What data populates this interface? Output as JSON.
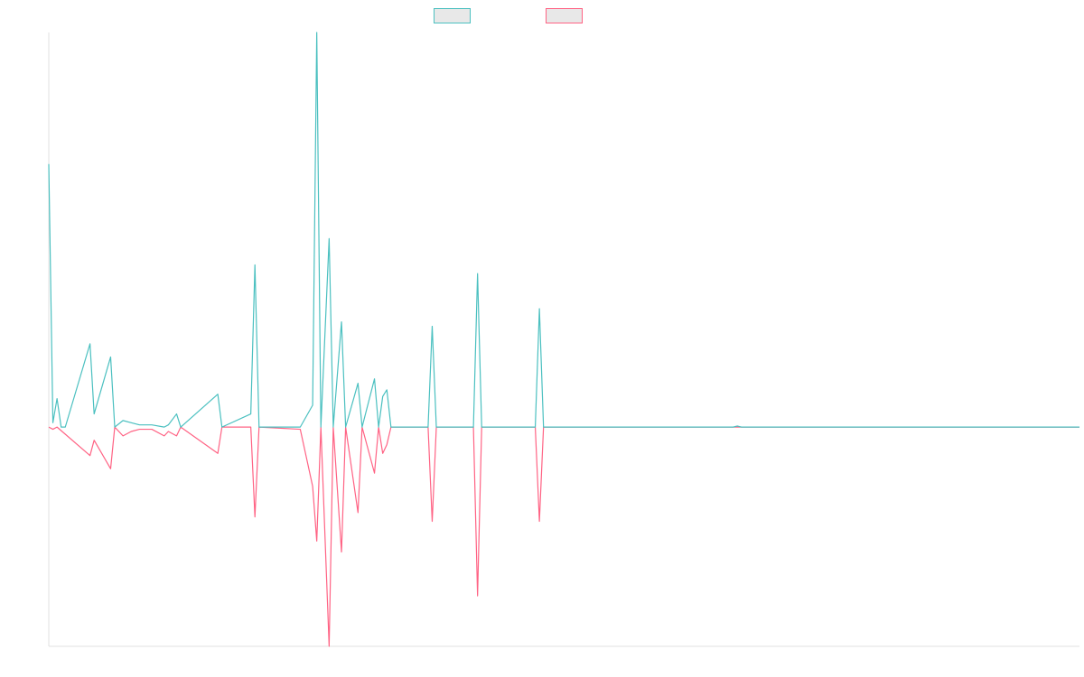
{
  "chart_data": {
    "type": "line",
    "title": "",
    "xlabel": "",
    "ylabel": "",
    "legend_position": "top-center",
    "grid": false,
    "x_count": 250,
    "ylim": [
      -1.0,
      1.8
    ],
    "colors": {
      "series_a": "#4bc0c0",
      "series_b": "#ff6384",
      "legend_fill": "#e8e8e8",
      "axis": "#e0e0e0"
    },
    "series": [
      {
        "key": "series_a",
        "name": "",
        "points": [
          [
            0,
            1.2
          ],
          [
            1,
            0.02
          ],
          [
            2,
            0.13
          ],
          [
            3,
            0.0
          ],
          [
            4,
            0.0
          ],
          [
            10,
            0.38
          ],
          [
            11,
            0.06
          ],
          [
            15,
            0.32
          ],
          [
            16,
            0.0
          ],
          [
            18,
            0.03
          ],
          [
            20,
            0.02
          ],
          [
            22,
            0.01
          ],
          [
            25,
            0.01
          ],
          [
            28,
            0.0
          ],
          [
            29,
            0.01
          ],
          [
            31,
            0.06
          ],
          [
            32,
            0.0
          ],
          [
            41,
            0.15
          ],
          [
            42,
            0.0
          ],
          [
            49,
            0.06
          ],
          [
            50,
            0.74
          ],
          [
            51,
            0.0
          ],
          [
            61,
            0.0
          ],
          [
            64,
            0.1
          ],
          [
            65,
            1.8
          ],
          [
            66,
            0.0
          ],
          [
            68,
            0.86
          ],
          [
            69,
            0.0
          ],
          [
            71,
            0.48
          ],
          [
            72,
            0.0
          ],
          [
            75,
            0.2
          ],
          [
            76,
            0.0
          ],
          [
            79,
            0.22
          ],
          [
            80,
            0.0
          ],
          [
            81,
            0.14
          ],
          [
            82,
            0.17
          ],
          [
            83,
            0.0
          ],
          [
            92,
            0.0
          ],
          [
            93,
            0.46
          ],
          [
            94,
            0.0
          ],
          [
            103,
            0.0
          ],
          [
            104,
            0.7
          ],
          [
            105,
            0.0
          ],
          [
            118,
            0.0
          ],
          [
            119,
            0.54
          ],
          [
            120,
            0.0
          ],
          [
            166,
            0.0
          ],
          [
            167,
            0.005
          ],
          [
            168,
            0.0
          ],
          [
            250,
            0.0
          ]
        ]
      },
      {
        "key": "series_b",
        "name": "",
        "points": [
          [
            0,
            0.0
          ],
          [
            1,
            -0.01
          ],
          [
            2,
            0.0
          ],
          [
            10,
            -0.13
          ],
          [
            11,
            -0.06
          ],
          [
            15,
            -0.19
          ],
          [
            16,
            0.0
          ],
          [
            18,
            -0.04
          ],
          [
            20,
            -0.02
          ],
          [
            22,
            -0.01
          ],
          [
            25,
            -0.01
          ],
          [
            28,
            -0.04
          ],
          [
            29,
            -0.02
          ],
          [
            31,
            -0.04
          ],
          [
            32,
            0.0
          ],
          [
            41,
            -0.12
          ],
          [
            42,
            0.0
          ],
          [
            49,
            0.0
          ],
          [
            50,
            -0.41
          ],
          [
            51,
            0.0
          ],
          [
            61,
            -0.01
          ],
          [
            64,
            -0.27
          ],
          [
            65,
            -0.52
          ],
          [
            66,
            0.0
          ],
          [
            68,
            -1.0
          ],
          [
            69,
            0.0
          ],
          [
            71,
            -0.57
          ],
          [
            72,
            0.0
          ],
          [
            75,
            -0.39
          ],
          [
            76,
            0.0
          ],
          [
            79,
            -0.21
          ],
          [
            80,
            0.0
          ],
          [
            81,
            -0.12
          ],
          [
            82,
            -0.08
          ],
          [
            83,
            0.0
          ],
          [
            92,
            0.0
          ],
          [
            93,
            -0.43
          ],
          [
            94,
            0.0
          ],
          [
            103,
            0.0
          ],
          [
            104,
            -0.77
          ],
          [
            105,
            0.0
          ],
          [
            118,
            0.0
          ],
          [
            119,
            -0.43
          ],
          [
            120,
            0.0
          ],
          [
            166,
            0.0
          ],
          [
            250,
            0.0
          ]
        ]
      }
    ]
  }
}
